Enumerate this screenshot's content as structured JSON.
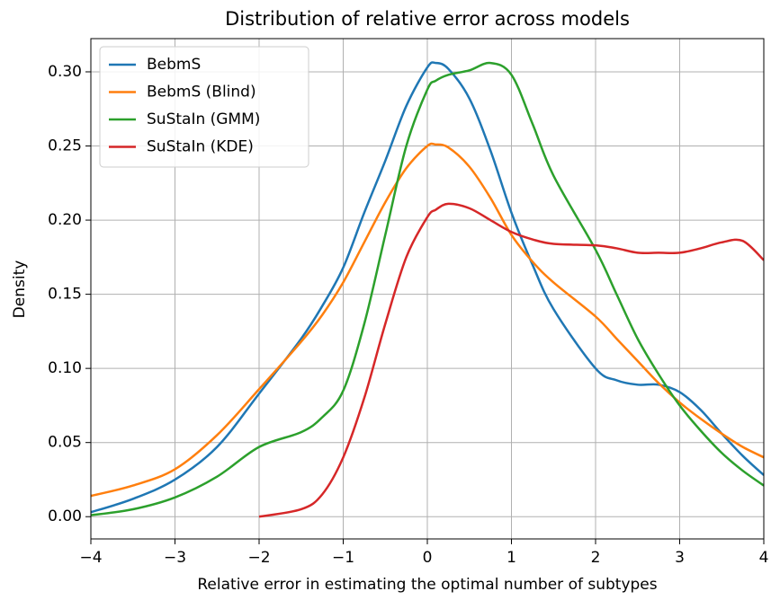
{
  "chart_data": {
    "type": "line",
    "title": "Distribution of relative error across models",
    "xlabel": "Relative error in estimating the optimal number of subtypes",
    "ylabel": "Density",
    "x": [
      -4,
      -3.5,
      -3,
      -2.5,
      -2,
      -1.5,
      -1.25,
      -1,
      -0.75,
      -0.5,
      -0.25,
      0,
      0.1,
      0.25,
      0.5,
      0.75,
      1,
      1.25,
      1.5,
      2,
      2.25,
      2.5,
      2.75,
      3,
      3.25,
      3.5,
      3.75,
      4
    ],
    "series": [
      {
        "name": "BebmS",
        "color": "#1f77b4",
        "values": [
          0.003,
          0.012,
          0.025,
          0.047,
          0.083,
          0.12,
          0.142,
          0.168,
          0.205,
          0.24,
          0.277,
          0.303,
          0.306,
          0.302,
          0.282,
          0.247,
          0.205,
          0.17,
          0.14,
          0.1,
          0.092,
          0.089,
          0.089,
          0.084,
          0.072,
          0.056,
          0.041,
          0.028
        ]
      },
      {
        "name": "BebmS (Blind)",
        "color": "#ff7f0e",
        "values": [
          0.014,
          0.021,
          0.032,
          0.055,
          0.086,
          0.118,
          0.136,
          0.158,
          0.185,
          0.212,
          0.235,
          0.25,
          0.251,
          0.249,
          0.236,
          0.215,
          0.19,
          0.172,
          0.158,
          0.135,
          0.12,
          0.105,
          0.09,
          0.077,
          0.066,
          0.056,
          0.047,
          0.04
        ]
      },
      {
        "name": "SuStaIn (GMM)",
        "color": "#2ca02c",
        "values": [
          0.001,
          0.005,
          0.013,
          0.027,
          0.047,
          0.057,
          0.067,
          0.085,
          0.13,
          0.19,
          0.25,
          0.288,
          0.294,
          0.298,
          0.301,
          0.306,
          0.298,
          0.265,
          0.23,
          0.18,
          0.15,
          0.12,
          0.096,
          0.075,
          0.058,
          0.043,
          0.031,
          0.021
        ]
      },
      {
        "name": "SuStaIn (KDE)",
        "color": "#d62728",
        "values": [
          null,
          null,
          null,
          null,
          0.0,
          0.005,
          0.015,
          0.04,
          0.08,
          0.13,
          0.175,
          0.202,
          0.207,
          0.211,
          0.208,
          0.2,
          0.192,
          0.187,
          0.184,
          0.183,
          0.181,
          0.178,
          0.178,
          0.178,
          0.181,
          0.185,
          0.186,
          0.173
        ]
      }
    ],
    "xlim": [
      -4,
      4
    ],
    "ylim": [
      -0.015,
      0.3224
    ],
    "xticks": [
      {
        "value": -4,
        "label": "−4"
      },
      {
        "value": -3,
        "label": "−3"
      },
      {
        "value": -2,
        "label": "−2"
      },
      {
        "value": -1,
        "label": "−1"
      },
      0,
      1,
      2,
      3,
      4
    ],
    "yticks": [
      {
        "value": 0,
        "label": "0.00"
      },
      {
        "value": 0.05,
        "label": "0.05"
      },
      {
        "value": 0.1,
        "label": "0.10"
      },
      {
        "value": 0.15,
        "label": "0.15"
      },
      {
        "value": 0.2,
        "label": "0.20"
      },
      {
        "value": 0.25,
        "label": "0.25"
      },
      {
        "value": 0.3,
        "label": "0.30"
      }
    ],
    "grid": true,
    "legend": "upper-left"
  }
}
